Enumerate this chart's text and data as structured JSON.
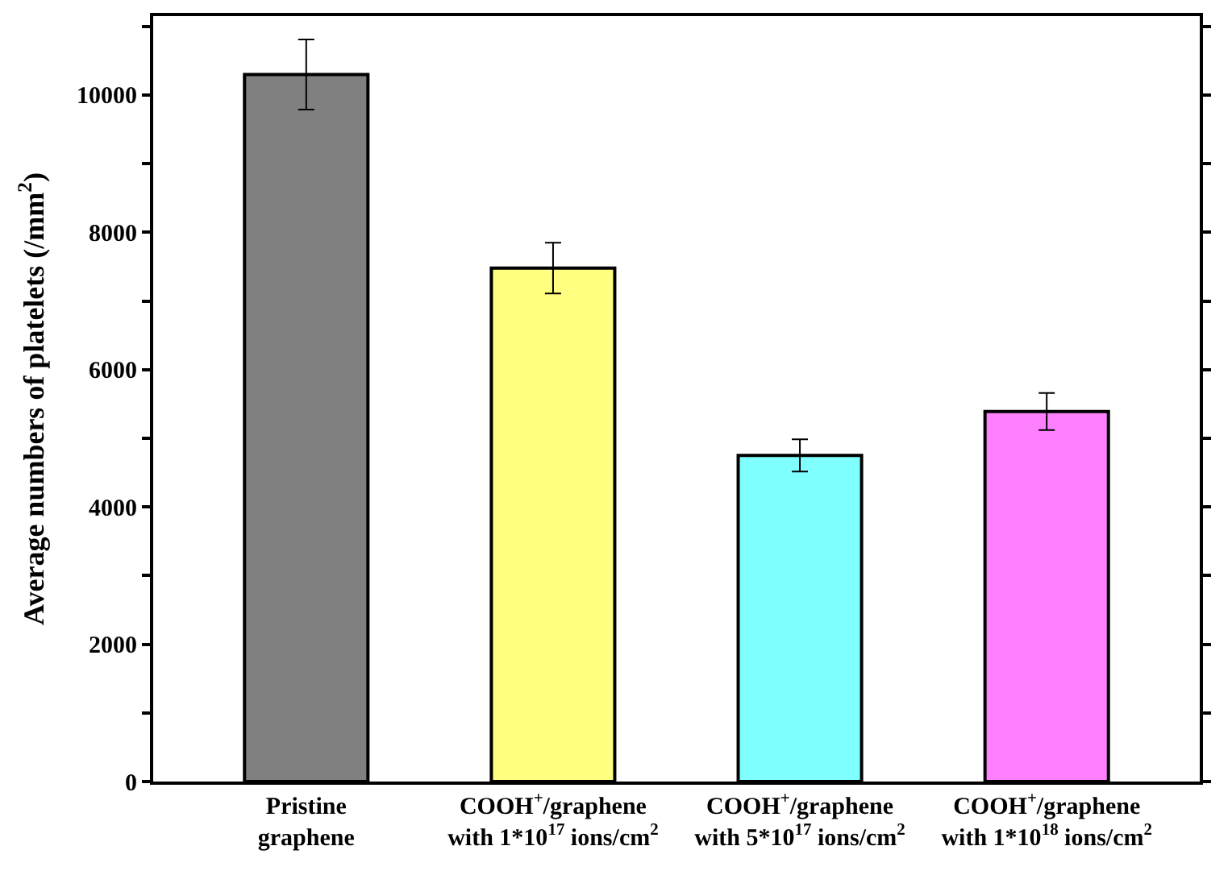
{
  "chart_data": {
    "type": "bar",
    "ylabel": "Average numbers of platelets (/mm$^{2}$)",
    "categories": [
      "Pristine\ngraphene",
      "COOH$^{+}$/graphene\nwith 1*10$^{17}$ ions/cm$^{2}$",
      "COOH$^{+}$/graphene\nwith 5*10$^{17}$ ions/cm$^{2}$",
      "COOH$^{+}$/graphene\nwith 1*10$^{18}$ ions/cm$^{2}$"
    ],
    "values": [
      10300,
      7480,
      4750,
      5390
    ],
    "errors": [
      510,
      370,
      235,
      270
    ],
    "colors": [
      "#808080",
      "#ffff80",
      "#80ffff",
      "#ff80ff"
    ],
    "ylim": [
      0,
      11150
    ],
    "yticks": [
      0,
      {
        "value": 1000,
        "label": null
      },
      2000,
      {
        "value": 3000,
        "label": null
      },
      4000,
      {
        "value": 5000,
        "label": null
      },
      6000,
      {
        "value": 7000,
        "label": null
      },
      8000,
      {
        "value": 9000,
        "label": null
      },
      10000,
      {
        "value": 11000,
        "label": null
      }
    ],
    "tick_labels": "y"
  }
}
